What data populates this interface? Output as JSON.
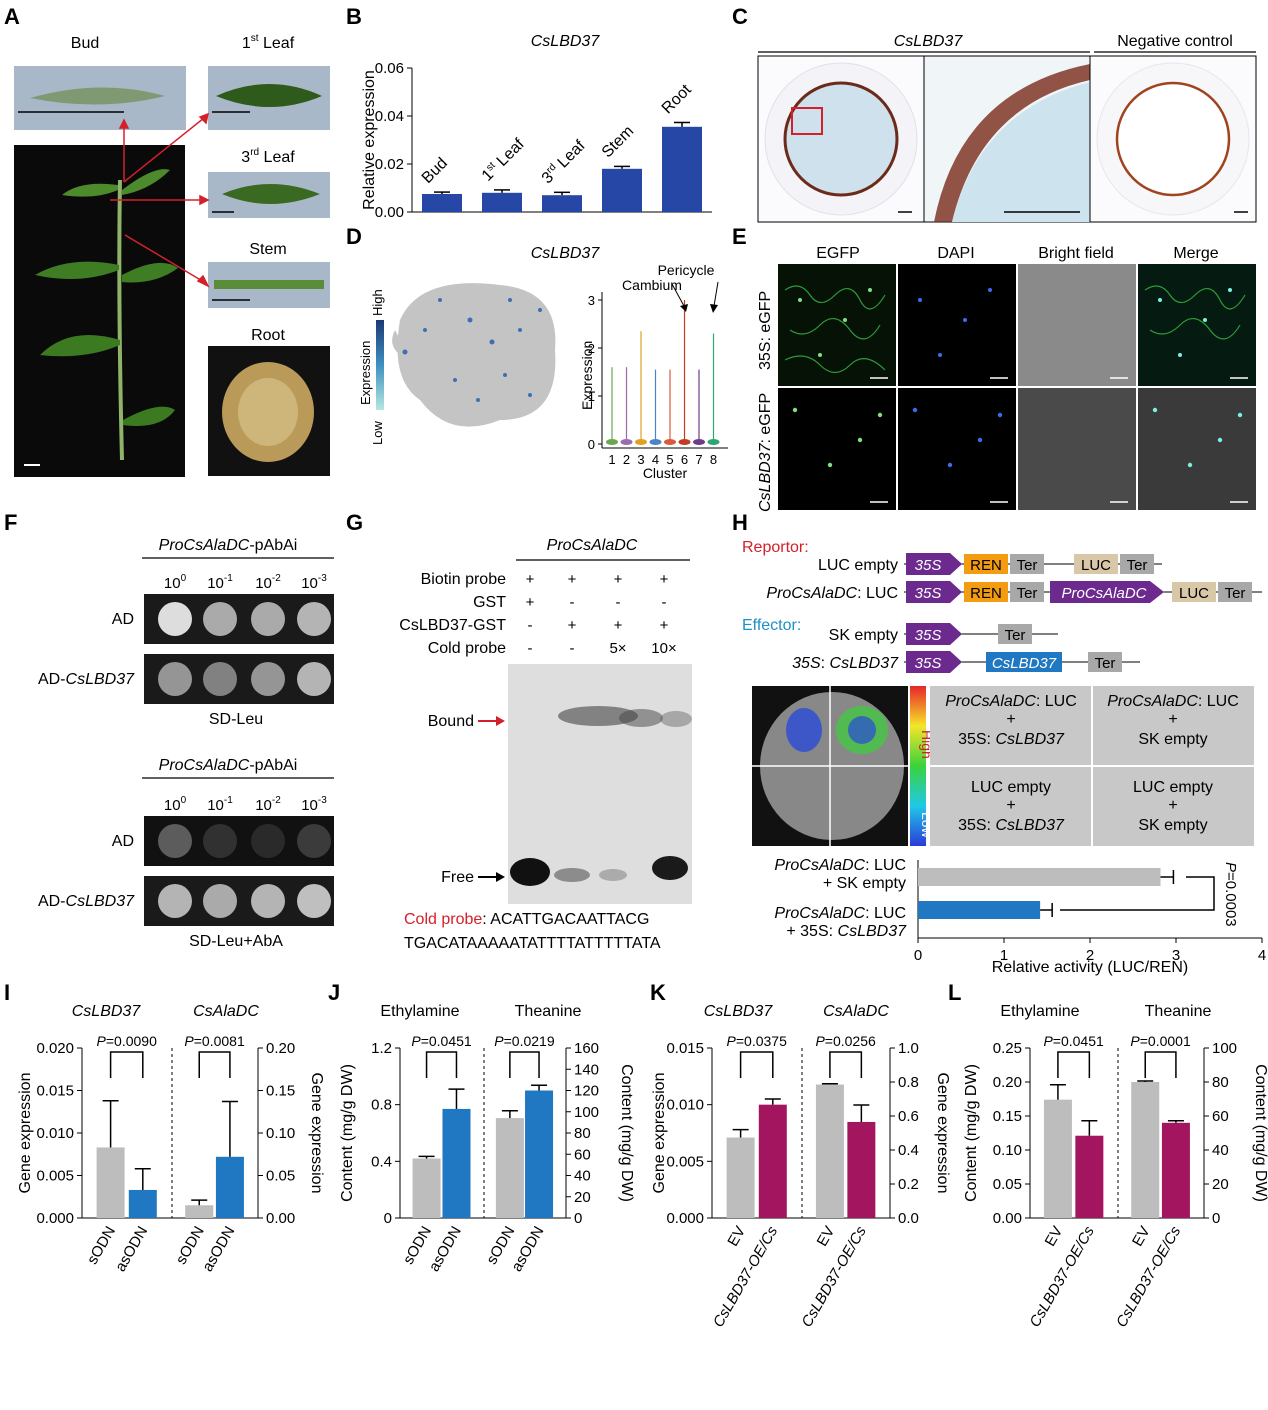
{
  "panel_letters": [
    "A",
    "B",
    "C",
    "D",
    "E",
    "F",
    "G",
    "H",
    "I",
    "J",
    "K",
    "L"
  ],
  "panelA": {
    "bud": "Bud",
    "leaf1_base": "1",
    "leaf1_sup": "st",
    "leaf1_rest": " Leaf",
    "leaf3_base": "3",
    "leaf3_sup": "rd",
    "leaf3_rest": " Leaf",
    "stem": "Stem",
    "root": "Root"
  },
  "panelC": {
    "title": "CsLBD37",
    "negative": "Negative control"
  },
  "panelD": {
    "title": "CsLBD37",
    "legend_high": "High",
    "legend_title": "Expression",
    "legend_low": "Low",
    "cambium": "Cambium",
    "pericycle": "Pericycle",
    "ylabel": "Expression",
    "xlabel": "Cluster",
    "yticks": [
      "0",
      "1",
      "2",
      "3"
    ],
    "clusters": [
      "1",
      "2",
      "3",
      "4",
      "5",
      "6",
      "7",
      "8"
    ]
  },
  "panelE": {
    "cols": [
      "EGFP",
      "DAPI",
      "Bright field",
      "Merge"
    ],
    "row1": "35S: eGFP",
    "row2_it": "CsLBD37",
    "row2_rest": ": eGFP"
  },
  "panelF": {
    "construct_it": "ProCsAlaDC",
    "construct_rest": "-pAbAi",
    "dilutions": [
      "10",
      "10",
      "10",
      "10"
    ],
    "exps": [
      "0",
      "-1",
      "-2",
      "-3"
    ],
    "ad": "AD",
    "ad_cs_prefix": "AD-",
    "ad_cs_it": "CsLBD37",
    "medium1": "SD-Leu",
    "medium2": "SD-Leu+AbA"
  },
  "panelG": {
    "title": "ProCsAlaDC",
    "rows": [
      {
        "label": "Biotin probe",
        "vals": [
          "+",
          "+",
          "+",
          "+"
        ]
      },
      {
        "label": "GST",
        "vals": [
          "+",
          "-",
          "-",
          "-"
        ]
      },
      {
        "label": "CsLBD37-GST",
        "vals": [
          "-",
          "+",
          "+",
          "+"
        ]
      },
      {
        "label": "Cold probe",
        "vals": [
          "-",
          "-",
          "5×",
          "10×"
        ]
      }
    ],
    "bound": "Bound",
    "free": "Free",
    "cold_probe": "Cold probe",
    "seq1": ": ACATTGACAATTACG",
    "seq2": "TGACATAAAAATATTTTATTTTTATA"
  },
  "panelH": {
    "reporter": "Reportor:",
    "effector": "Effector:",
    "luc_empty": "LUC empty",
    "proc_it": "ProCsAlaDC",
    "luc_suffix": ": LUC",
    "sk_empty": "SK empty",
    "s35_it": "35S",
    "cs_it": "CsLBD37",
    "box_35s": "35S",
    "box_ren": "REN",
    "box_ter": "Ter",
    "box_luc": "LUC",
    "box_pro": "ProCsAlaDC",
    "box_cs": "CsLBD37",
    "grid": [
      [
        "ProCsAlaDC: LUC",
        "+",
        "35S: CsLBD37"
      ],
      [
        "ProCsAlaDC: LUC",
        "+",
        "SK empty"
      ],
      [
        "LUC empty",
        "+",
        "35S: CsLBD37"
      ],
      [
        "LUC empty",
        "+",
        "SK empty"
      ]
    ],
    "color_high": "High",
    "color_low": "Low",
    "bar_label1": "ProCsAlaDC: LUC",
    "bar_label1b": "+ SK empty",
    "bar_label2": "ProCsAlaDC: LUC",
    "bar_label2b": "+ 35S: CsLBD37",
    "pval": "P=0.0003",
    "xlabel": "Relative activity (LUC/REN)",
    "xticks": [
      "0",
      "1",
      "2",
      "3",
      "4"
    ]
  },
  "chart_data": [
    {
      "panel": "B",
      "type": "bar",
      "title": "CsLBD37",
      "ylabel": "Relative expression",
      "categories": [
        "Bud",
        "1st Leaf",
        "3rd Leaf",
        "Stem",
        "Root"
      ],
      "values": [
        0.0075,
        0.008,
        0.007,
        0.018,
        0.0355
      ],
      "errors": [
        0.0008,
        0.0012,
        0.0012,
        0.001,
        0.0018
      ],
      "ylim": [
        0,
        0.06
      ],
      "yticks": [
        "0.00",
        "0.02",
        "0.04",
        "0.06"
      ],
      "color": "#2747a6"
    },
    {
      "panel": "H",
      "type": "bar",
      "orientation": "horizontal",
      "xlabel": "Relative activity (LUC/REN)",
      "categories": [
        "ProCsAlaDC: LUC + SK empty",
        "ProCsAlaDC: LUC + 35S: CsLBD37"
      ],
      "values": [
        2.82,
        1.42
      ],
      "errors": [
        0.15,
        0.14
      ],
      "xlim": [
        0,
        4
      ],
      "colors": [
        "#bdbdbd",
        "#1f78c1"
      ],
      "pvalue": "P=0.0003"
    },
    {
      "panel": "I",
      "type": "bar",
      "left_title": "CsLBD37",
      "right_title": "CsAlaDC",
      "ylabel_left": "Gene expression",
      "ylabel_right": "Gene expression",
      "left": {
        "categories": [
          "sODN",
          "asODN"
        ],
        "values": [
          0.0083,
          0.0033
        ],
        "errors": [
          0.0055,
          0.0025
        ],
        "ylim": [
          0,
          0.02
        ],
        "yticks": [
          "0.000",
          "0.005",
          "0.010",
          "0.015",
          "0.020"
        ],
        "p": "P=0.0090"
      },
      "right": {
        "categories": [
          "sODN",
          "asODN"
        ],
        "values": [
          0.015,
          0.072
        ],
        "errors": [
          0.006,
          0.065
        ],
        "ylim": [
          0,
          0.2
        ],
        "yticks": [
          "0.00",
          "0.05",
          "0.10",
          "0.15",
          "0.20"
        ],
        "p": "P=0.0081"
      },
      "colors": [
        "#bdbdbd",
        "#1f78c1"
      ]
    },
    {
      "panel": "J",
      "type": "bar",
      "left_title": "Ethylamine",
      "right_title": "Theanine",
      "ylabel_left": "Content (mg/g DW)",
      "ylabel_right": "Content (mg/g DW)",
      "left": {
        "categories": [
          "sODN",
          "asODN"
        ],
        "values": [
          0.42,
          0.77
        ],
        "errors": [
          0.015,
          0.14
        ],
        "ylim": [
          0,
          1.2
        ],
        "yticks": [
          "0",
          "0.4",
          "0.8",
          "1.2"
        ],
        "p": "P=0.0451"
      },
      "right": {
        "categories": [
          "sODN",
          "asODN"
        ],
        "values": [
          94,
          120
        ],
        "errors": [
          7,
          5
        ],
        "ylim": [
          0,
          160
        ],
        "yticks": [
          "0",
          "20",
          "40",
          "60",
          "80",
          "100",
          "120",
          "140",
          "160"
        ],
        "p": "P=0.0219"
      },
      "colors": [
        "#bdbdbd",
        "#1f78c1"
      ]
    },
    {
      "panel": "K",
      "type": "bar",
      "left_title": "CsLBD37",
      "right_title": "CsAlaDC",
      "ylabel_left": "Gene expression",
      "ylabel_right": "Gene expression",
      "left": {
        "categories": [
          "EV",
          "CsLBD37-OE/Cs"
        ],
        "values": [
          0.0071,
          0.01
        ],
        "errors": [
          0.0007,
          0.0005
        ],
        "ylim": [
          0,
          0.015
        ],
        "yticks": [
          "0.000",
          "0.005",
          "0.010",
          "0.015"
        ],
        "p": "P=0.0375"
      },
      "right": {
        "categories": [
          "EV",
          "CsLBD37-OE/Cs"
        ],
        "values": [
          0.785,
          0.565
        ],
        "errors": [
          0.005,
          0.1
        ],
        "ylim": [
          0,
          1.0
        ],
        "yticks": [
          "0.0",
          "0.2",
          "0.4",
          "0.6",
          "0.8",
          "1.0"
        ],
        "p": "P=0.0256"
      },
      "colors": [
        "#bdbdbd",
        "#a3155f"
      ]
    },
    {
      "panel": "L",
      "type": "bar",
      "left_title": "Ethylamine",
      "right_title": "Theanine",
      "ylabel_left": "Content (mg/g DW)",
      "ylabel_right": "Content (mg/g DW)",
      "left": {
        "categories": [
          "EV",
          "CsLBD37-OE/Cs"
        ],
        "values": [
          0.174,
          0.121
        ],
        "errors": [
          0.022,
          0.022
        ],
        "ylim": [
          0,
          0.25
        ],
        "yticks": [
          "0.00",
          "0.05",
          "0.10",
          "0.15",
          "0.20",
          "0.25"
        ],
        "p": "P=0.0451"
      },
      "right": {
        "categories": [
          "EV",
          "CsLBD37-OE/Cs"
        ],
        "values": [
          80,
          56
        ],
        "errors": [
          0.6,
          1.2
        ],
        "ylim": [
          0,
          100
        ],
        "yticks": [
          "0",
          "20",
          "40",
          "60",
          "80",
          "100"
        ],
        "p": "P=0.0001"
      },
      "colors": [
        "#bdbdbd",
        "#a3155f"
      ]
    }
  ]
}
